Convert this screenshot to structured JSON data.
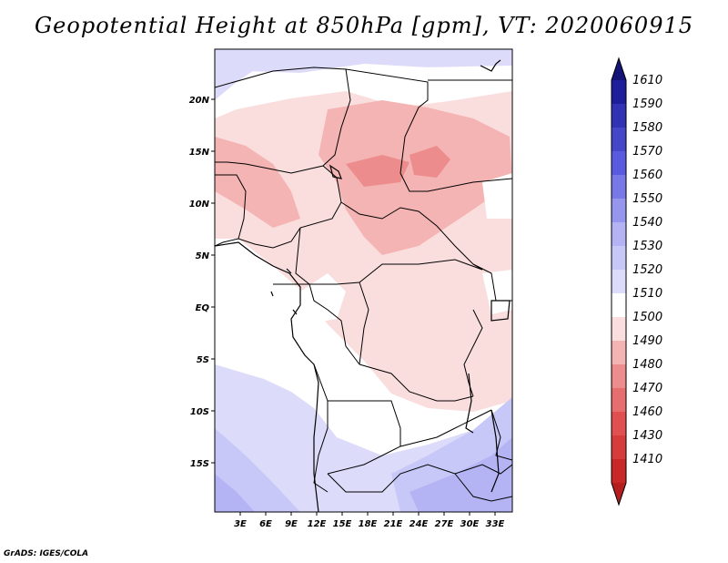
{
  "title": "Geopotential Height at 850hPa [gpm], VT: 2020060915",
  "credit": "GrADS: IGES/COLA",
  "colors": {
    "c1400": "#b41e1e",
    "c1410": "#c82828",
    "c1430": "#d63c3c",
    "c1460": "#e05050",
    "c1470": "#e66e6e",
    "c1480": "#ec8c8c",
    "c1490": "#f4b4b4",
    "c1500": "#fadede",
    "c1510": "#ffffff",
    "c1520": "#dcdcfa",
    "c1530": "#c8c8f8",
    "c1540": "#b4b4f4",
    "c1550": "#9696ee",
    "c1560": "#7878e6",
    "c1570": "#5a5ade",
    "c1580": "#4646c8",
    "c1590": "#3232b4",
    "c1600": "#1e1e9a",
    "c1610": "#141478",
    "border": "#000000"
  },
  "map": {
    "lat_labels": [
      "20N",
      "15N",
      "10N",
      "5N",
      "EQ",
      "5S",
      "10S",
      "15S"
    ],
    "lon_labels": [
      "3E",
      "6E",
      "9E",
      "12E",
      "15E",
      "18E",
      "21E",
      "24E",
      "27E",
      "30E",
      "33E"
    ]
  },
  "colorbar": {
    "labels": [
      "1610",
      "1590",
      "1580",
      "1570",
      "1560",
      "1550",
      "1540",
      "1530",
      "1520",
      "1510",
      "1500",
      "1490",
      "1480",
      "1470",
      "1460",
      "1430",
      "1410"
    ]
  }
}
